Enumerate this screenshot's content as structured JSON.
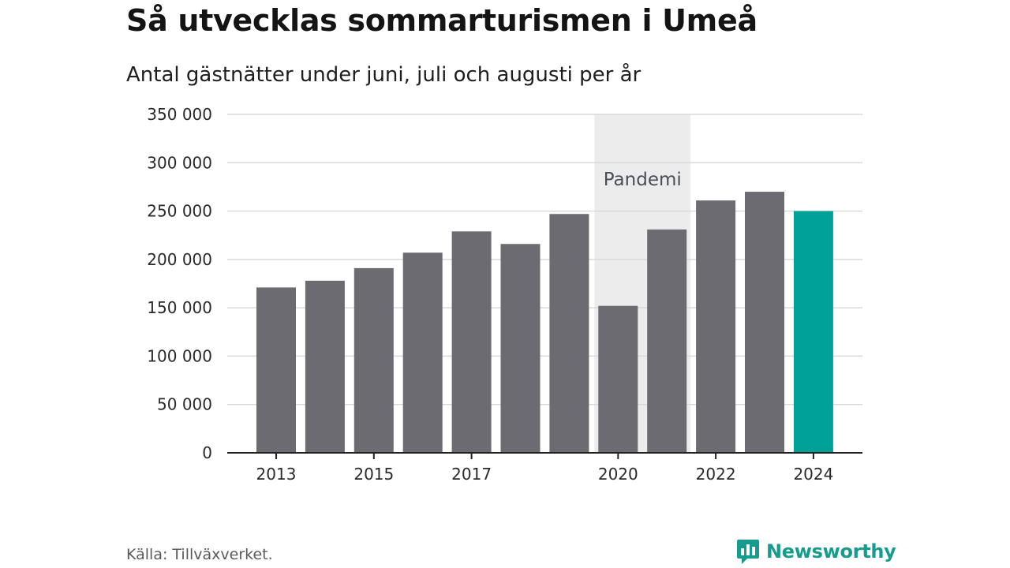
{
  "title": "Så utvecklas sommarturismen i Umeå",
  "subtitle": "Antal gästnätter under juni, juli och augusti per år",
  "source": "Källa: Tillväxverket.",
  "brand": "Newsworthy",
  "colors": {
    "bar": "#6c6b72",
    "highlight": "#00a196",
    "pandemic_band": "#ececec",
    "grid": "#d9d9d9",
    "axis": "#222222",
    "brand": "#169b8d"
  },
  "chart_data": {
    "type": "bar",
    "categories": [
      "2013",
      "2014",
      "2015",
      "2016",
      "2017",
      "2018",
      "2019",
      "2020",
      "2021",
      "2022",
      "2023",
      "2024"
    ],
    "values": [
      171000,
      178000,
      191000,
      207000,
      229000,
      216000,
      247000,
      152000,
      231000,
      261000,
      270000,
      250000
    ],
    "highlight_category": "2024",
    "x_tick_labels": [
      "2013",
      "2015",
      "2017",
      "2020",
      "2022",
      "2024"
    ],
    "y_ticks": [
      0,
      50000,
      100000,
      150000,
      200000,
      250000,
      300000,
      350000
    ],
    "y_tick_labels": [
      "0",
      "50 000",
      "100 000",
      "150 000",
      "200 000",
      "250 000",
      "300 000",
      "350 000"
    ],
    "ylim": [
      0,
      350000
    ],
    "grid": true,
    "annotation": {
      "label": "Pandemi",
      "span": [
        "2020",
        "2021"
      ]
    },
    "title": "Så utvecklas sommarturismen i Umeå",
    "subtitle": "Antal gästnätter under juni, juli och augusti per år"
  }
}
